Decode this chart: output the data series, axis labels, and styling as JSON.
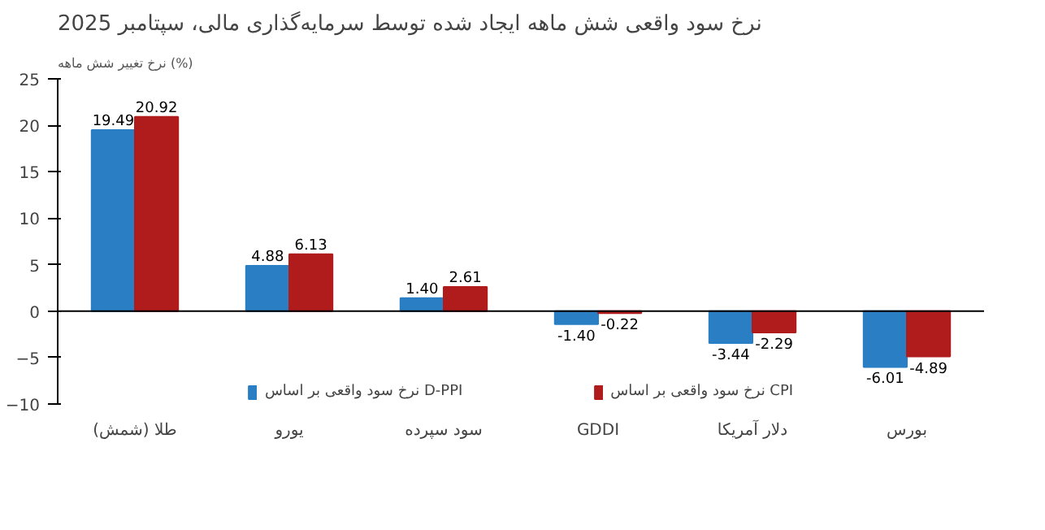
{
  "chart_data": {
    "type": "bar",
    "title": "نرخ سود واقعی شش ماهه ایجاد شده توسط سرمایه‌گذاری مالی، سپتامبر 2025",
    "ylabel": "نرخ تغییر شش ماهه (%)",
    "categories": [
      "طلا (شمش)",
      "یورو",
      "سود سپرده",
      "GDDI",
      "دلار آمریکا",
      "بورس"
    ],
    "series": [
      {
        "name": "نرخ سود واقعی بر اساس D-PPI",
        "color": "#2a7fc4",
        "values": [
          19.49,
          4.88,
          1.4,
          -1.4,
          -3.44,
          -6.01
        ],
        "value_labels": [
          "19.49",
          "4.88",
          "1.40",
          "-1.40",
          "-3.44",
          "-6.01"
        ]
      },
      {
        "name": "نرخ سود واقعی بر اساس CPI",
        "color": "#b01c1c",
        "values": [
          20.92,
          6.13,
          2.61,
          -0.22,
          -2.29,
          -4.89
        ],
        "value_labels": [
          "20.92",
          "6.13",
          "2.61",
          "-0.22",
          "-2.29",
          "-4.89"
        ]
      }
    ],
    "ylim": [
      -10,
      25
    ],
    "yticks": [
      -10,
      -5,
      0,
      5,
      10,
      15,
      20,
      25
    ],
    "legend": "bottom"
  }
}
